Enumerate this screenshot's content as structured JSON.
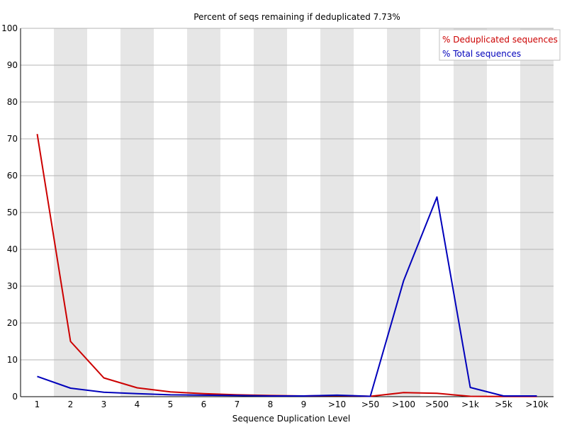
{
  "chart_data": {
    "type": "line",
    "title": "Percent of seqs remaining if deduplicated 7.73%",
    "xlabel": "Sequence Duplication Level",
    "ylabel": "",
    "ylim": [
      0,
      100
    ],
    "yticks": [
      0,
      10,
      20,
      30,
      40,
      50,
      60,
      70,
      80,
      90,
      100
    ],
    "categories": [
      "1",
      "2",
      "3",
      "4",
      "5",
      "6",
      "7",
      "8",
      "9",
      ">10",
      ">50",
      ">100",
      ">500",
      ">1k",
      ">5k",
      ">10k"
    ],
    "grid": true,
    "alternating_bands": true,
    "band_color": "#e6e6e6",
    "legend_position": "top-right",
    "series": [
      {
        "name": "% Deduplicated sequences",
        "color": "#cc0000",
        "values": [
          71.3,
          15.0,
          5.1,
          2.4,
          1.3,
          0.8,
          0.5,
          0.3,
          0.2,
          0.3,
          0.1,
          1.1,
          0.9,
          0.1,
          0.05,
          0.05
        ]
      },
      {
        "name": "% Total sequences",
        "color": "#0000bb",
        "values": [
          5.5,
          2.3,
          1.2,
          0.8,
          0.5,
          0.4,
          0.3,
          0.2,
          0.2,
          0.4,
          0.1,
          31.5,
          54.2,
          2.5,
          0.2,
          0.2
        ]
      }
    ]
  }
}
